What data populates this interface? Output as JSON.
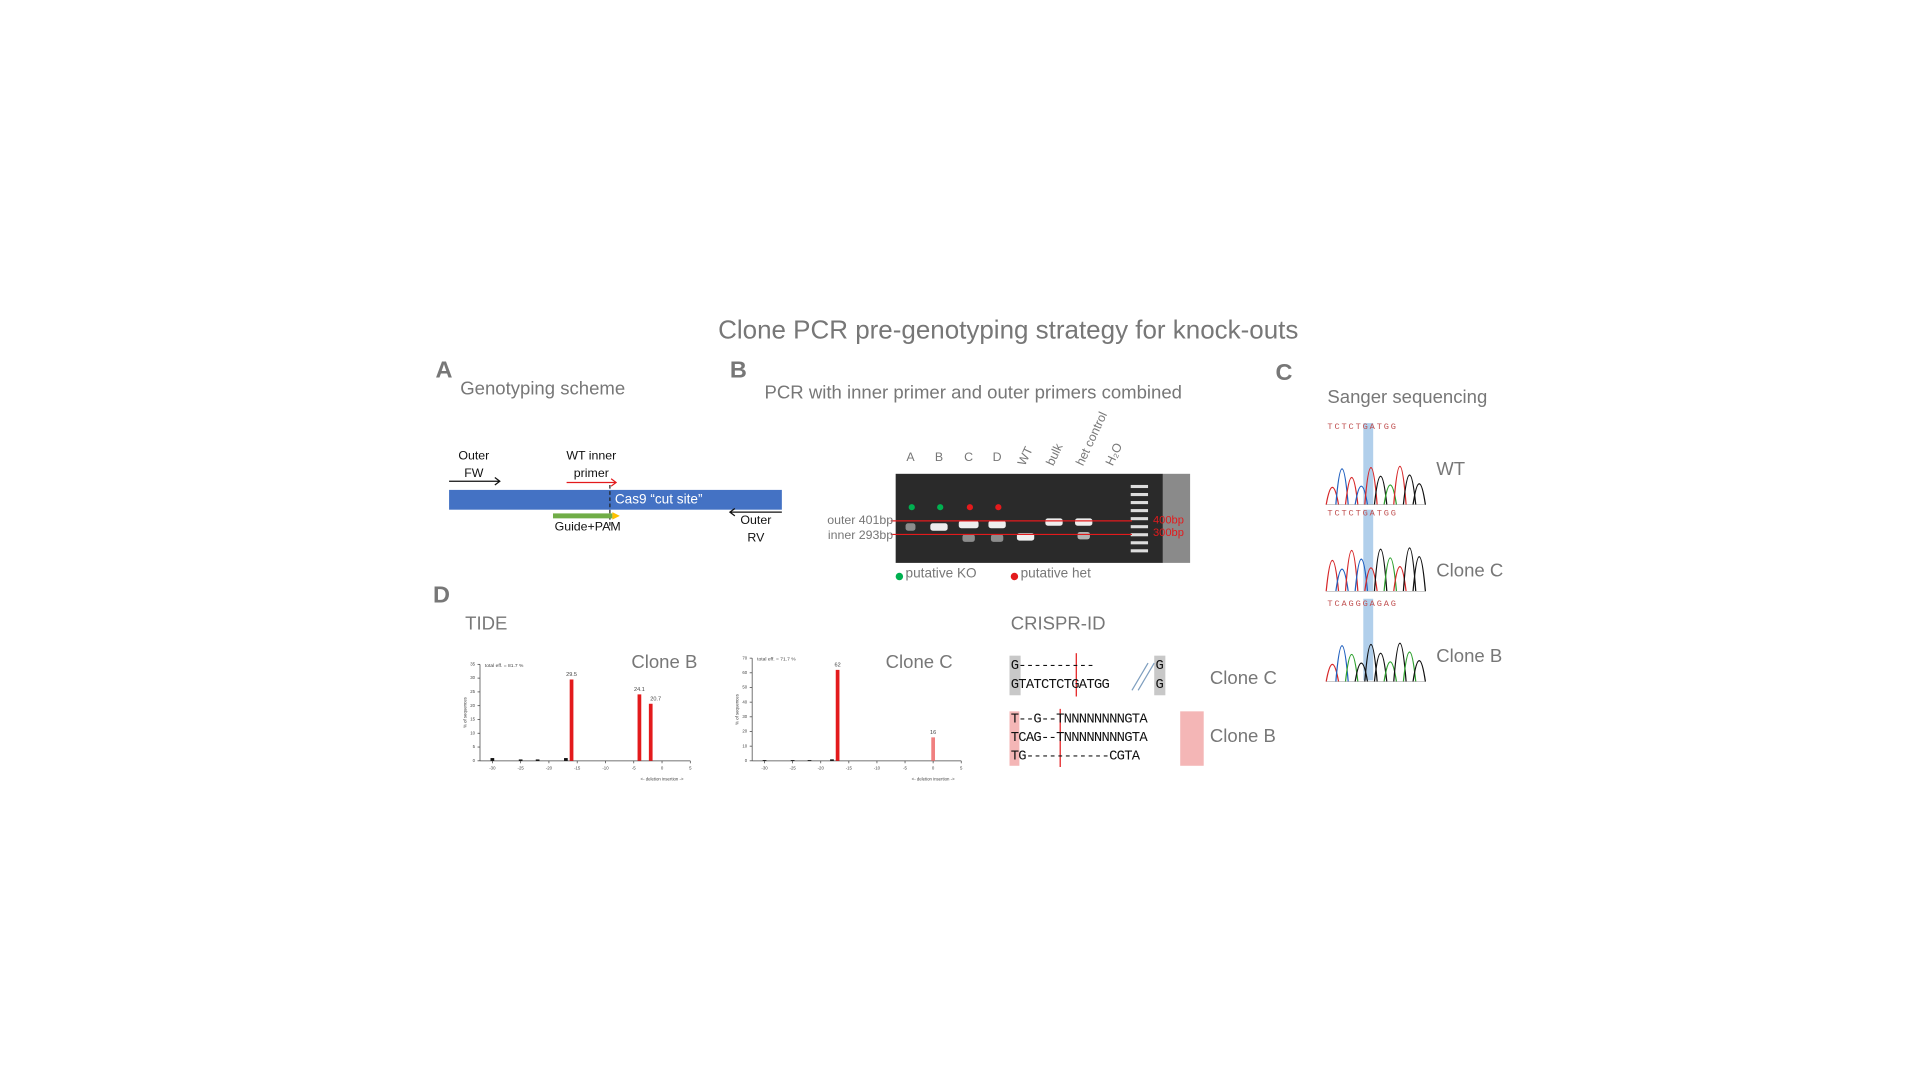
{
  "title": "Clone PCR pre-genotyping strategy for knock-outs",
  "panel_a": {
    "letter": "A",
    "title": "Genotyping scheme",
    "outer_fw": [
      "Outer",
      "FW"
    ],
    "wt_inner": [
      "WT inner",
      "primer"
    ],
    "cut_site": "Cas9 “cut site”",
    "guide": "Guide+PAM",
    "outer_rv": [
      "Outer",
      "RV"
    ]
  },
  "panel_b": {
    "letter": "B",
    "title": "PCR with inner primer and outer primers combined",
    "lanes": [
      "A",
      "B",
      "C",
      "D",
      "WT",
      "bulk",
      "het control",
      "H₂O"
    ],
    "band_labels": [
      "outer 401bp",
      "inner 293bp"
    ],
    "ladder": [
      "400bp",
      "300bp"
    ],
    "legend": [
      "putative KO",
      "putative het"
    ]
  },
  "panel_c": {
    "letter": "C",
    "title": "Sanger sequencing",
    "traces": [
      {
        "sequence": "TCTCTGATGG",
        "name": "WT"
      },
      {
        "sequence": "TCTCTGATGG",
        "name": "Clone C"
      },
      {
        "sequence": "TCAGGGAGAG",
        "name": "Clone B"
      }
    ]
  },
  "panel_d": {
    "letter": "D",
    "tide_title": "TIDE",
    "crispr_title": "CRISPR-ID",
    "tide": [
      {
        "name": "Clone B",
        "efficiency": "total eff. = 81.7 %",
        "ylabel": "% of sequences",
        "xlabel": "<- deletion   insertion ->",
        "x": [
          -30,
          -25,
          -22,
          -17,
          -16,
          -4,
          -2
        ],
        "values": [
          1,
          0.5,
          0.5,
          1,
          29.5,
          24.1,
          20.7
        ],
        "value_labels": [
          null,
          null,
          null,
          null,
          "29.5",
          "24.1",
          "20.7"
        ],
        "colors": [
          "#111",
          "#111",
          "#111",
          "#111",
          "#e31a1c",
          "#e31a1c",
          "#e31a1c"
        ],
        "xlim": [
          -30,
          5
        ],
        "ylim": [
          0,
          35
        ],
        "xticks": [
          -30,
          -25,
          -20,
          -15,
          -10,
          -5,
          0,
          5
        ],
        "yticks": [
          0,
          5,
          10,
          15,
          20,
          25,
          30,
          35
        ]
      },
      {
        "name": "Clone C",
        "efficiency": "total eff. = 71.7 %",
        "ylabel": "% of sequences",
        "xlabel": "<- deletion   insertion ->",
        "x": [
          -30,
          -25,
          -22,
          -18,
          -17,
          0
        ],
        "values": [
          0.5,
          0.5,
          0.5,
          1,
          62,
          16
        ],
        "value_labels": [
          null,
          null,
          null,
          null,
          "62",
          "16"
        ],
        "colors": [
          "#111",
          "#111",
          "#111",
          "#111",
          "#e31a1c",
          "#f08080"
        ],
        "xlim": [
          -30,
          5
        ],
        "ylim": [
          0,
          70
        ],
        "xticks": [
          -30,
          -25,
          -20,
          -15,
          -10,
          -5,
          0,
          5
        ],
        "yticks": [
          0,
          10,
          20,
          30,
          40,
          50,
          60,
          70
        ]
      }
    ],
    "crispr": [
      {
        "name": "Clone C",
        "rows": [
          "G----------",
          "GTATCTCTGATGG"
        ],
        "right": [
          "G",
          "G"
        ]
      },
      {
        "name": "Clone B",
        "rows": [
          "T--G--TNNNNNNNNGTA",
          "TCAG--TNNNNNNNNGTA",
          "TG-----------CGTA"
        ],
        "right": []
      }
    ]
  }
}
